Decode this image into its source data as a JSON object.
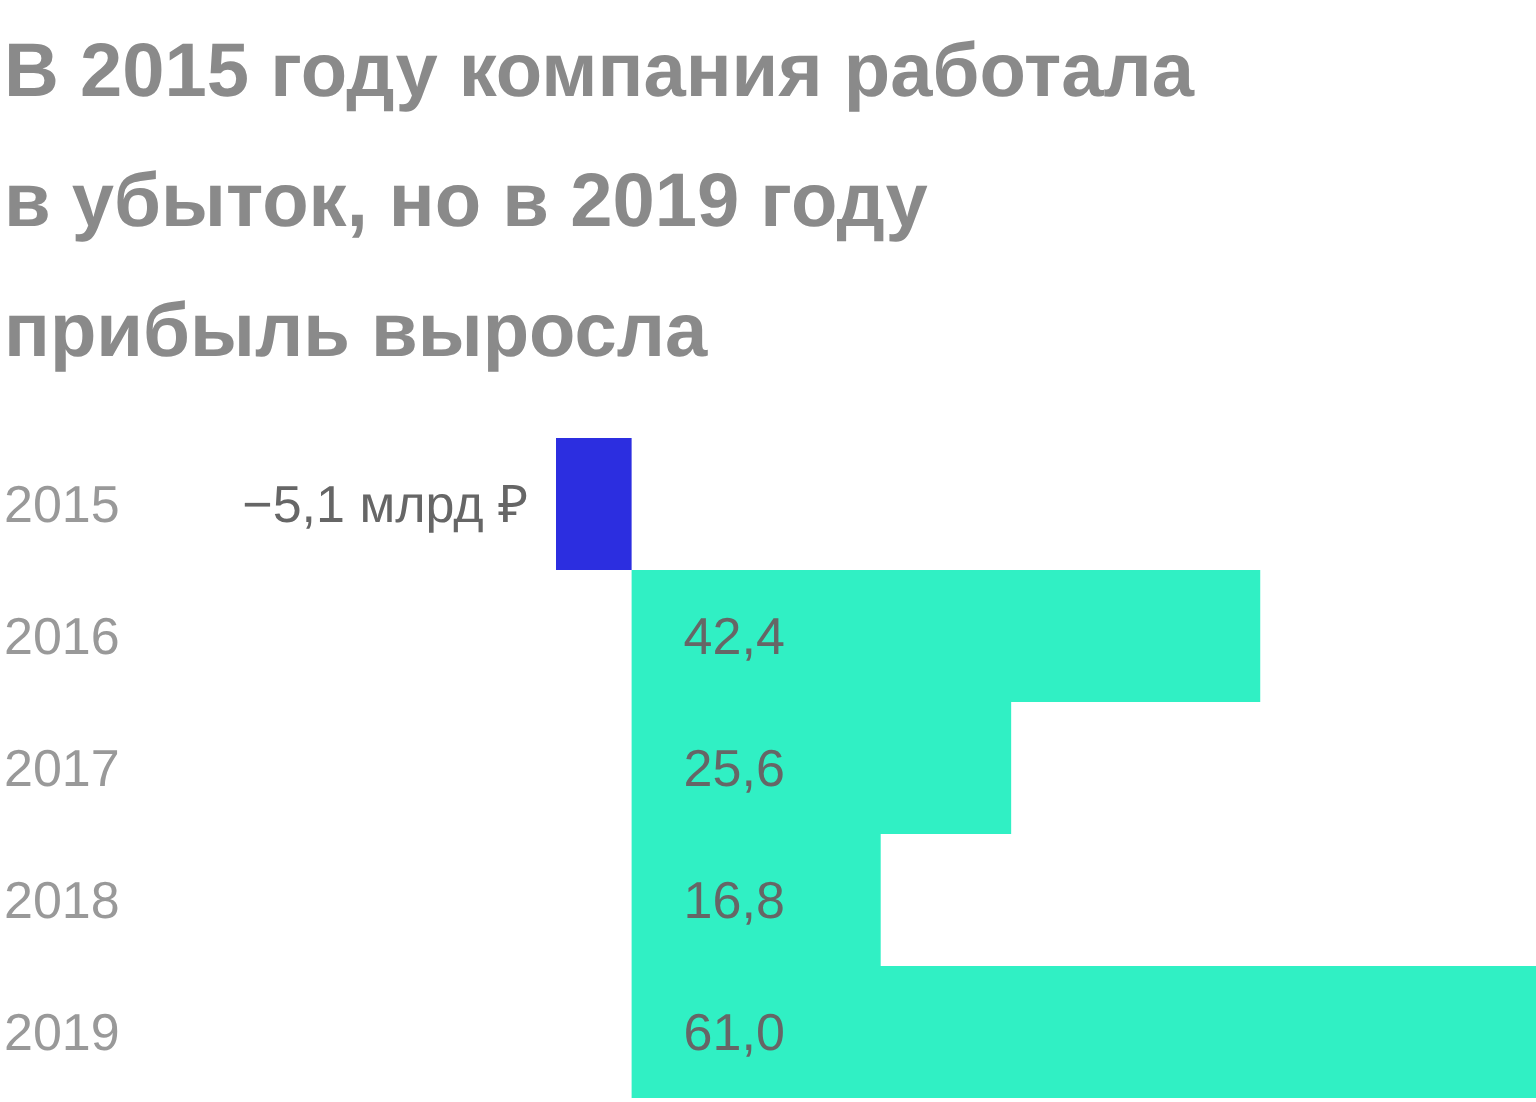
{
  "chart_data": {
    "type": "bar",
    "orientation": "horizontal",
    "title": "В 2015 году компания работала в убыток, но в 2019 году прибыль выросла",
    "categories": [
      "2015",
      "2016",
      "2017",
      "2018",
      "2019"
    ],
    "values": [
      -5.1,
      42.4,
      25.6,
      16.8,
      61.0
    ],
    "colors": [
      "#2c2ee0",
      "#30f0c4",
      "#30f0c4",
      "#30f0c4",
      "#30f0c4"
    ],
    "value_labels": [
      "−5,1 млрд ₽",
      "42,4",
      "25,6",
      "16,8",
      "61,0"
    ],
    "xlim": [
      -5.1,
      61.0
    ]
  }
}
